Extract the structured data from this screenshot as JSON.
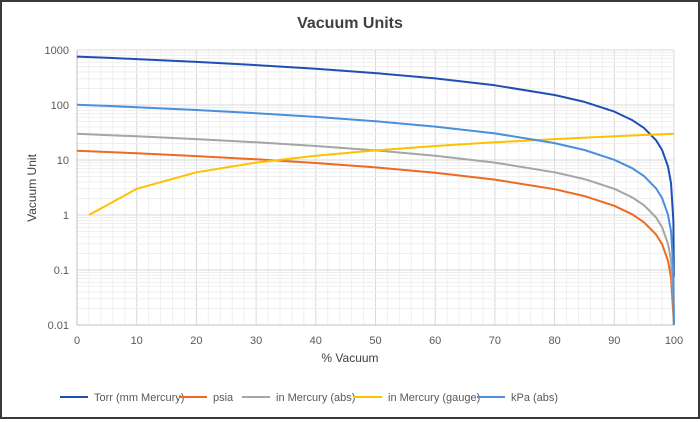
{
  "chart_data": {
    "type": "line",
    "title": "Vacuum Units",
    "xlabel": "% Vacuum",
    "ylabel": "Vacuum Unit",
    "xlim": [
      0,
      100
    ],
    "ylim": [
      0.01,
      1000
    ],
    "yscale": "log",
    "grid": true,
    "legend": "bottom",
    "xticks": [
      "0",
      "10",
      "20",
      "30",
      "40",
      "50",
      "60",
      "70",
      "80",
      "90",
      "100"
    ],
    "yticks": [
      "0.01",
      "0.1",
      "1",
      "10",
      "100",
      "1000"
    ],
    "series": [
      {
        "name": "Torr (mm Mercury)",
        "color": "#1f4fb5",
        "x": [
          0,
          5,
          10,
          20,
          30,
          40,
          50,
          60,
          70,
          80,
          85,
          90,
          93,
          95,
          97,
          98,
          99,
          99.5,
          99.9,
          99.99
        ],
        "values": [
          760,
          722,
          684,
          608,
          532,
          456,
          380,
          304,
          228,
          152,
          114,
          76,
          53.2,
          38,
          22.8,
          15.2,
          7.6,
          3.8,
          0.76,
          0.076
        ]
      },
      {
        "name": "psia",
        "color": "#ed6a1e",
        "x": [
          0,
          5,
          10,
          20,
          30,
          40,
          50,
          60,
          70,
          80,
          85,
          90,
          93,
          95,
          97,
          98,
          99,
          99.5,
          99.9,
          99.99
        ],
        "values": [
          14.7,
          13.97,
          13.23,
          11.76,
          10.29,
          8.82,
          7.35,
          5.88,
          4.41,
          2.94,
          2.21,
          1.47,
          1.03,
          0.735,
          0.441,
          0.294,
          0.147,
          0.0735,
          0.0147,
          0.00147
        ]
      },
      {
        "name": "in Mercury (abs)",
        "color": "#a5a5a5",
        "x": [
          0,
          5,
          10,
          20,
          30,
          40,
          50,
          60,
          70,
          80,
          85,
          90,
          93,
          95,
          97,
          98,
          99,
          99.5,
          99.9,
          99.99
        ],
        "values": [
          29.92,
          28.42,
          26.93,
          23.94,
          20.94,
          17.95,
          14.96,
          11.97,
          8.98,
          5.98,
          4.49,
          2.99,
          2.09,
          1.5,
          0.9,
          0.6,
          0.3,
          0.15,
          0.03,
          0.003
        ]
      },
      {
        "name": "in Mercury (gauge)",
        "color": "#ffc000",
        "x": [
          2,
          5,
          10,
          20,
          30,
          40,
          50,
          60,
          70,
          80,
          90,
          100
        ],
        "values": [
          1.0,
          1.5,
          2.99,
          5.98,
          8.98,
          11.97,
          14.96,
          17.95,
          20.94,
          23.94,
          26.93,
          29.92
        ]
      },
      {
        "name": "kPa (abs)",
        "color": "#4a8fdb",
        "x": [
          0,
          5,
          10,
          20,
          30,
          40,
          50,
          60,
          70,
          80,
          85,
          90,
          93,
          95,
          97,
          98,
          99,
          99.5,
          99.9,
          99.99
        ],
        "values": [
          101.3,
          96.2,
          91.2,
          81.0,
          70.9,
          60.8,
          50.7,
          40.5,
          30.4,
          20.3,
          15.2,
          10.1,
          7.09,
          5.07,
          3.04,
          2.03,
          1.01,
          0.51,
          0.1,
          0.01
        ]
      }
    ]
  }
}
